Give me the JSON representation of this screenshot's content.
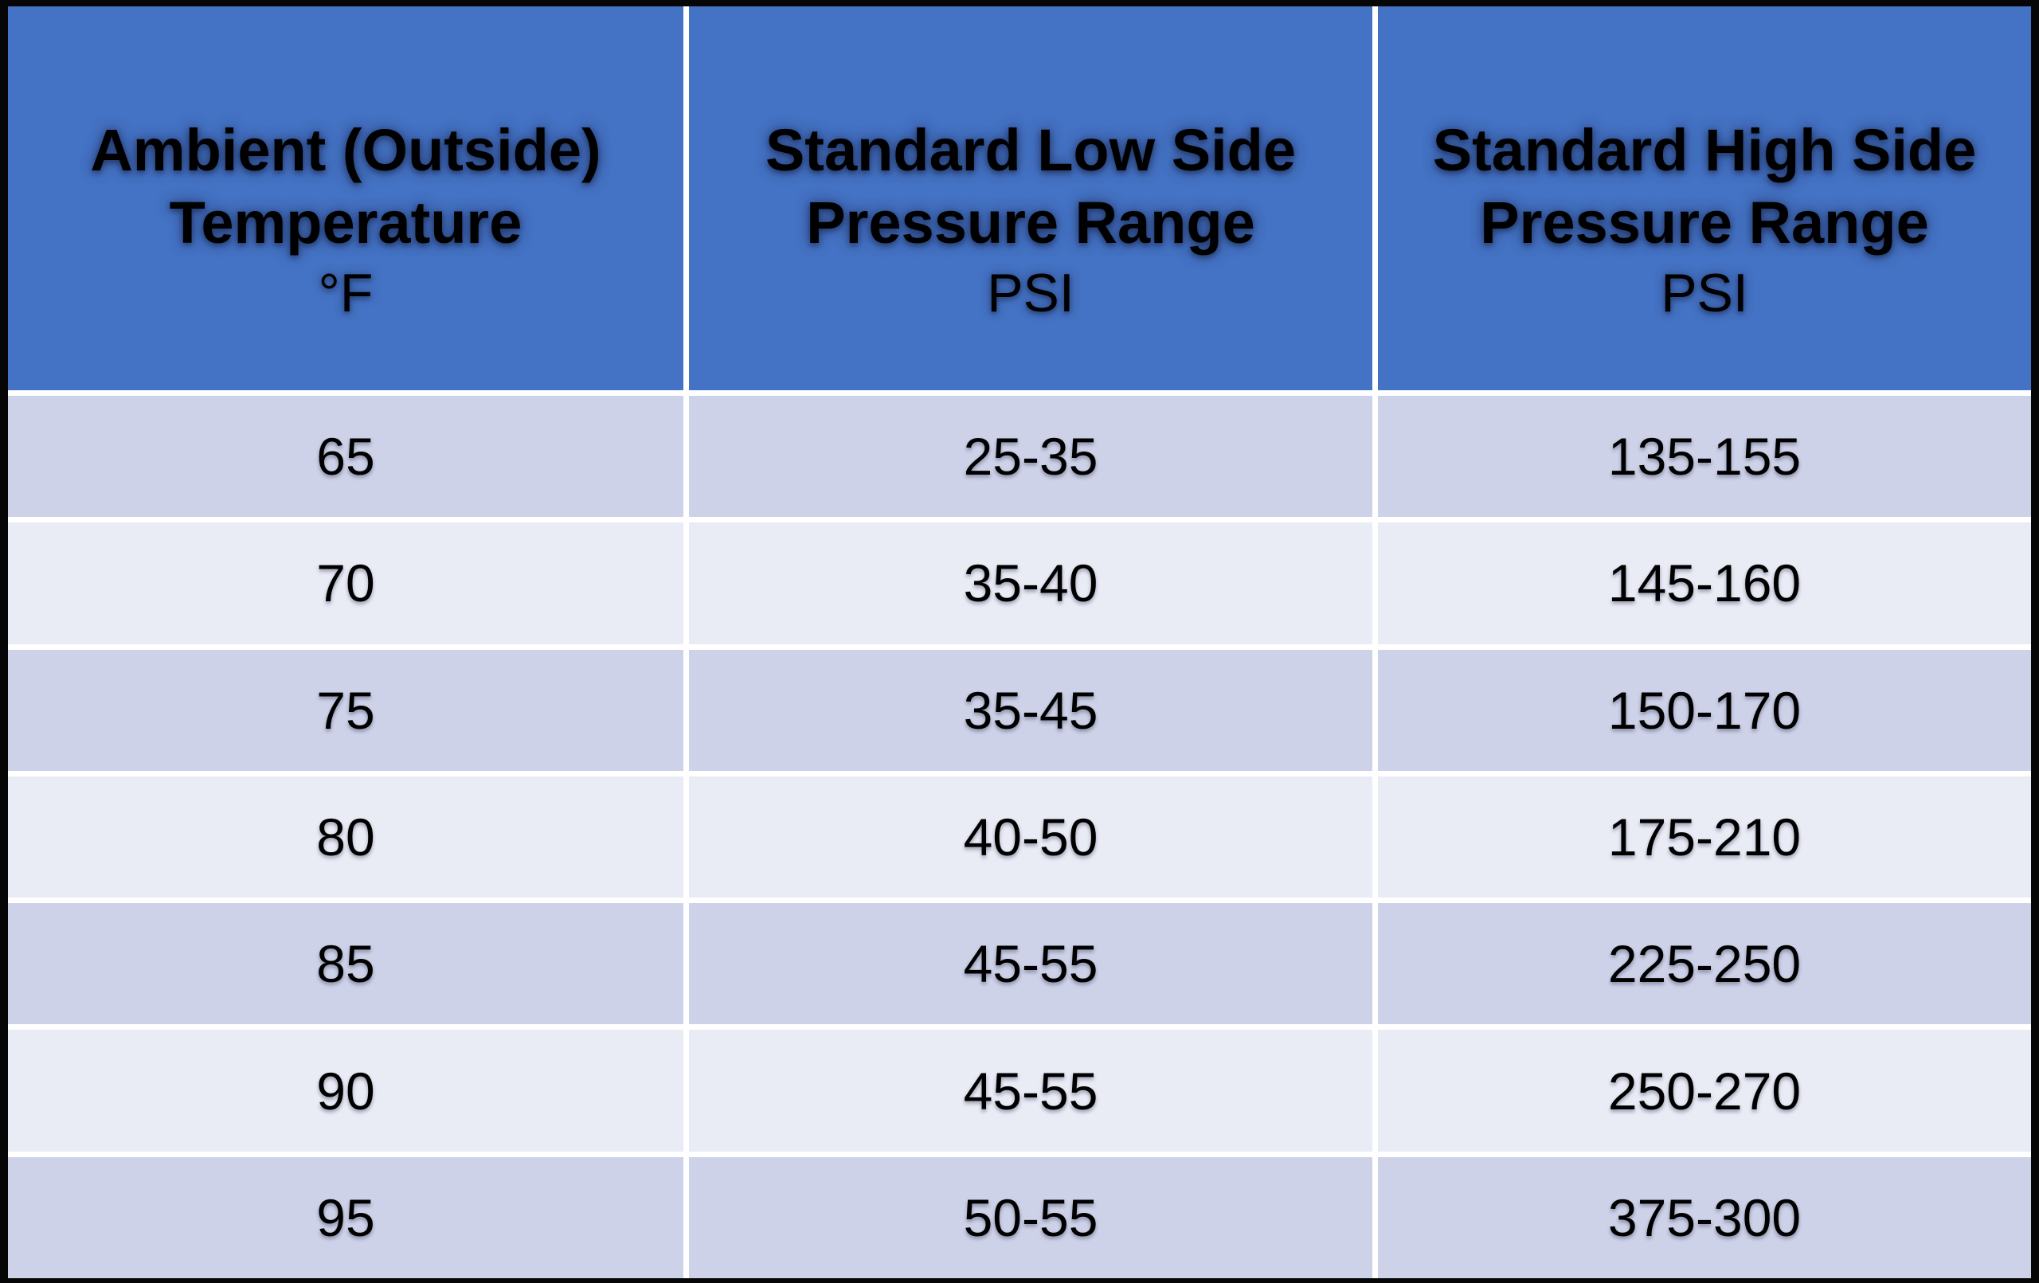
{
  "colors": {
    "header_bg": "#4472C4",
    "row_band_dark": "#CDD2E8",
    "row_band_light": "#E9EBF5",
    "grid_line": "#FFFFFF",
    "outer_border": "#060606",
    "text": "#000000"
  },
  "header": {
    "col1": {
      "line1": "Ambient (Outside)",
      "line2": "Temperature",
      "unit": "°F"
    },
    "col2": {
      "line1": "Standard Low Side",
      "line2": "Pressure Range",
      "unit": "PSI"
    },
    "col3": {
      "line1": "Standard High Side",
      "line2": "Pressure Range",
      "unit": "PSI"
    }
  },
  "rows": [
    {
      "temp": "65",
      "low": "25-35",
      "high": "135-155"
    },
    {
      "temp": "70",
      "low": "35-40",
      "high": "145-160"
    },
    {
      "temp": "75",
      "low": "35-45",
      "high": "150-170"
    },
    {
      "temp": "80",
      "low": "40-50",
      "high": "175-210"
    },
    {
      "temp": "85",
      "low": "45-55",
      "high": "225-250"
    },
    {
      "temp": "90",
      "low": "45-55",
      "high": "250-270"
    },
    {
      "temp": "95",
      "low": "50-55",
      "high": "375-300"
    }
  ],
  "chart_data": {
    "type": "table",
    "columns": [
      "Ambient (Outside) Temperature °F",
      "Standard Low Side Pressure Range PSI",
      "Standard High Side Pressure Range PSI"
    ],
    "rows": [
      [
        "65",
        "25-35",
        "135-155"
      ],
      [
        "70",
        "35-40",
        "145-160"
      ],
      [
        "75",
        "35-45",
        "150-170"
      ],
      [
        "80",
        "40-50",
        "175-210"
      ],
      [
        "85",
        "45-55",
        "225-250"
      ],
      [
        "90",
        "45-55",
        "250-270"
      ],
      [
        "95",
        "50-55",
        "375-300"
      ]
    ],
    "title": "",
    "layout": {
      "banded_rows": true,
      "header_fill": "#4472C4"
    }
  }
}
